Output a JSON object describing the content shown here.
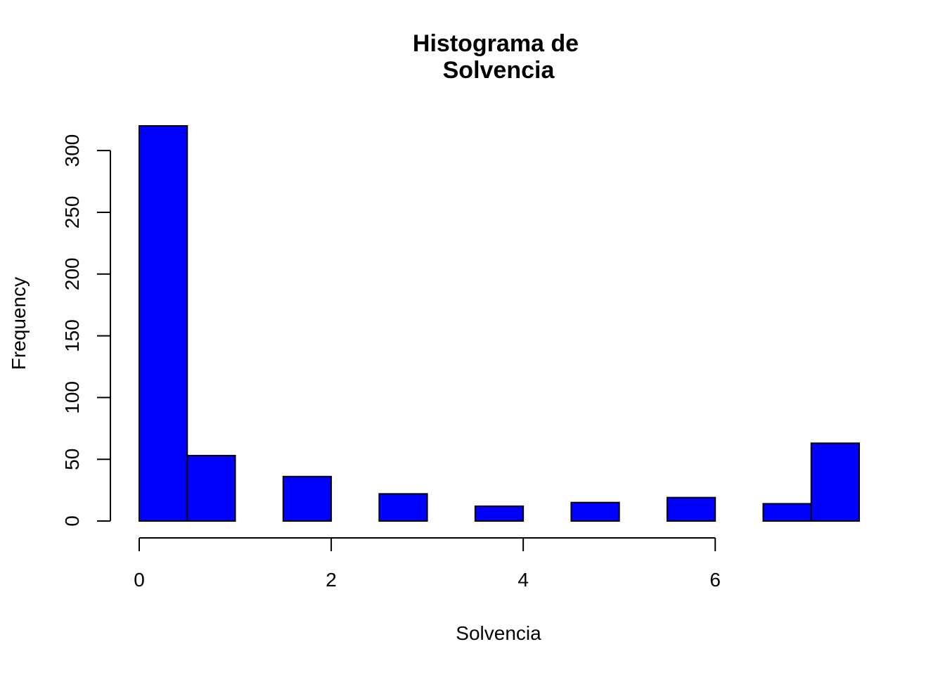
{
  "chart_data": {
    "type": "bar",
    "title_lines": [
      "Histograma de",
      "Solvencia"
    ],
    "xlabel": "Solvencia",
    "ylabel": "Frequency",
    "bin_edges": [
      0,
      0.5,
      1,
      1.5,
      2,
      2.5,
      3,
      3.5,
      4,
      4.5,
      5,
      5.5,
      6,
      6.5,
      7,
      7.5
    ],
    "values": [
      320,
      53,
      0,
      36,
      0,
      22,
      0,
      12,
      0,
      15,
      0,
      19,
      0,
      14,
      63
    ],
    "bar_color": "#0000FF",
    "xlim": [
      0,
      7.5
    ],
    "ylim": [
      0,
      320
    ],
    "x_ticks": [
      0,
      2,
      4,
      6
    ],
    "y_ticks": [
      0,
      50,
      100,
      150,
      200,
      250,
      300
    ],
    "grid": false,
    "legend": "none"
  }
}
